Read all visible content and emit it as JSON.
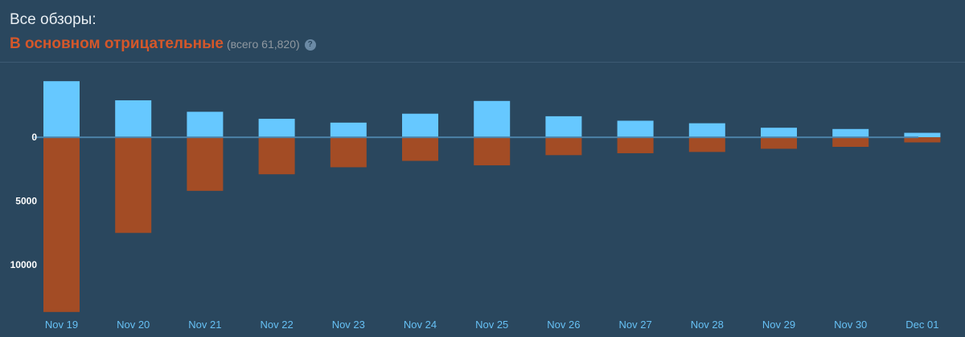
{
  "header": {
    "title": "Все обзоры:",
    "rating": "В основном отрицательные",
    "total": "(всего 61,820)",
    "help_glyph": "?"
  },
  "colors": {
    "background": "#2a475e",
    "positive": "#66c8ff",
    "negative": "#a34c25",
    "rating": "#d4572a",
    "zero_line": "#4c82a8"
  },
  "icons": {
    "help": "help-icon"
  },
  "chart_data": {
    "type": "bar",
    "categories": [
      "Nov 19",
      "Nov 20",
      "Nov 21",
      "Nov 22",
      "Nov 23",
      "Nov 24",
      "Nov 25",
      "Nov 26",
      "Nov 27",
      "Nov 28",
      "Nov 29",
      "Nov 30",
      "Dec 01"
    ],
    "series": [
      {
        "values": [
          4400,
          2900,
          2000,
          1450,
          1150,
          1850,
          2850,
          1650,
          1300,
          1100,
          750,
          650,
          350
        ]
      },
      {
        "values": [
          -13700,
          -7500,
          -4200,
          -2900,
          -2350,
          -1850,
          -2200,
          -1400,
          -1250,
          -1150,
          -900,
          -750,
          -400
        ]
      }
    ],
    "yticks": [
      0,
      5000,
      10000
    ],
    "ytick_labels": [
      "0",
      "5000",
      "10000"
    ],
    "ylim": [
      -13900,
      4600
    ],
    "title": "",
    "xlabel": "",
    "ylabel": "",
    "grid": false,
    "legend": "none"
  }
}
